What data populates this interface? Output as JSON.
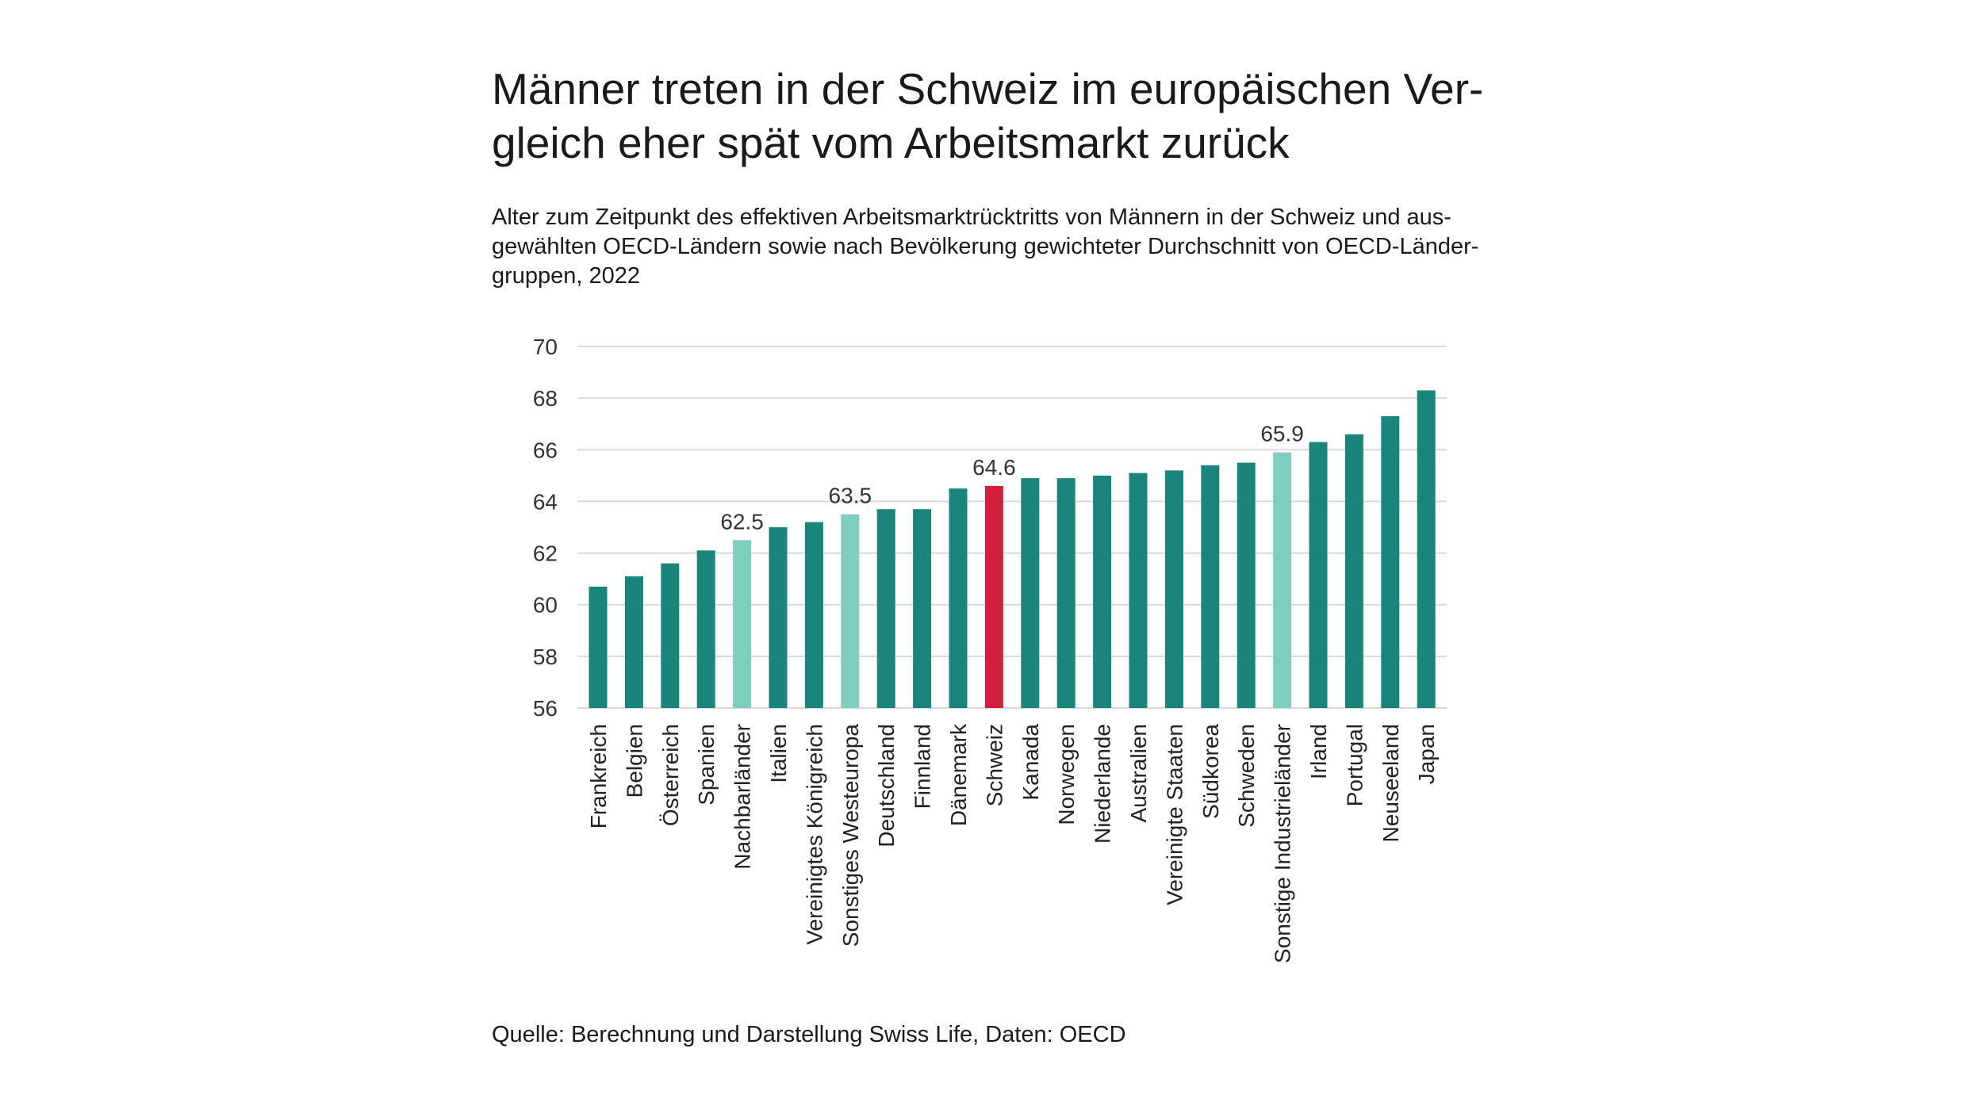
{
  "title_line1": "Männer treten in der Schweiz im europäischen Ver-",
  "title_line2": "gleich eher spät vom Arbeitsmarkt zurück",
  "subtitle_line1": "Alter zum Zeitpunkt des effektiven Arbeitsmarktrücktritts von Männern in der Schweiz und aus-",
  "subtitle_line2": "gewählten OECD-Ländern sowie nach Bevölkerung gewichteter Durchschnitt von OECD-Länder-",
  "subtitle_line3": "gruppen, 2022",
  "source": "Quelle: Berechnung und Darstellung Swiss Life, Daten: OECD",
  "colors": {
    "country": "#1a857a",
    "group": "#7fcfc1",
    "highlight": "#d21f3c",
    "grid": "#d9d9d9"
  },
  "chart_data": {
    "type": "bar",
    "title": "Männer treten in der Schweiz im europäischen Vergleich eher spät vom Arbeitsmarkt zurück",
    "xlabel": "",
    "ylabel": "",
    "ylim": [
      56,
      70
    ],
    "yticks": [
      56,
      58,
      60,
      62,
      64,
      66,
      68,
      70
    ],
    "grid": true,
    "categories": [
      "Frankreich",
      "Belgien",
      "Österreich",
      "Spanien",
      "Nachbarländer",
      "Italien",
      "Vereinigtes Königreich",
      "Sonstiges Westeuropa",
      "Deutschland",
      "Finnland",
      "Dänemark",
      "Schweiz",
      "Kanada",
      "Norwegen",
      "Niederlande",
      "Australien",
      "Vereinigte Staaten",
      "Südkorea",
      "Schweden",
      "Sonstige Industrieländer",
      "Irland",
      "Portugal",
      "Neuseeland",
      "Japan"
    ],
    "values": [
      60.7,
      61.1,
      61.6,
      62.1,
      62.5,
      63.0,
      63.2,
      63.5,
      63.7,
      63.7,
      64.5,
      64.6,
      64.9,
      64.9,
      65.0,
      65.1,
      65.2,
      65.4,
      65.5,
      65.9,
      66.3,
      66.6,
      67.3,
      68.3
    ],
    "kinds": [
      "country",
      "country",
      "country",
      "country",
      "group",
      "country",
      "country",
      "group",
      "country",
      "country",
      "country",
      "highlight",
      "country",
      "country",
      "country",
      "country",
      "country",
      "country",
      "country",
      "group",
      "country",
      "country",
      "country",
      "country"
    ],
    "data_labels": [
      "",
      "",
      "",
      "",
      "62.5",
      "",
      "",
      "63.5",
      "",
      "",
      "",
      "64.6",
      "",
      "",
      "",
      "",
      "",
      "",
      "",
      "65.9",
      "",
      "",
      "",
      ""
    ]
  }
}
